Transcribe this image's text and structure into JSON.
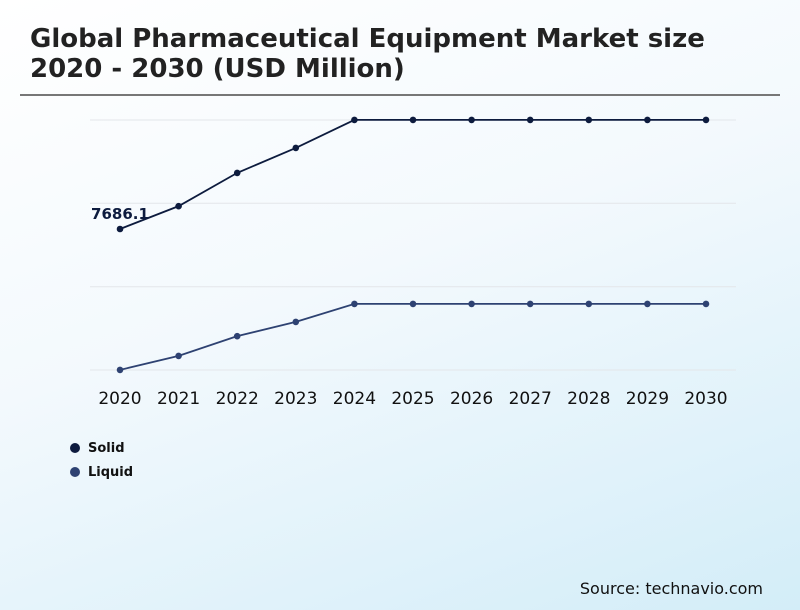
{
  "chart_data": {
    "type": "line",
    "title": "Global Pharmaceutical Equipment Market size 2020 - 2030 (USD Million)",
    "categories": [
      "2020",
      "2021",
      "2022",
      "2023",
      "2024",
      "2025",
      "2026",
      "2027",
      "2028",
      "2029",
      "2030"
    ],
    "series": [
      {
        "name": "Solid",
        "color": "#0d1b3e",
        "values": [
          7686.1,
          8600,
          9930,
          10930,
          12050,
          12050,
          12050,
          12050,
          12050,
          12050,
          12050
        ]
      },
      {
        "name": "Liquid",
        "color": "#2e4272",
        "values": [
          2050,
          2610,
          3400,
          3970,
          4690,
          4690,
          4690,
          4690,
          4690,
          4690,
          4690
        ]
      }
    ],
    "data_labels": [
      {
        "series": "Solid",
        "category": "2020",
        "text": "7686.1"
      }
    ],
    "ylim": [
      2046,
      12046
    ],
    "y_axis_labels_shown": false,
    "grid": true,
    "legend_placement": "bottom-left"
  },
  "source": "Source: technavio.com"
}
